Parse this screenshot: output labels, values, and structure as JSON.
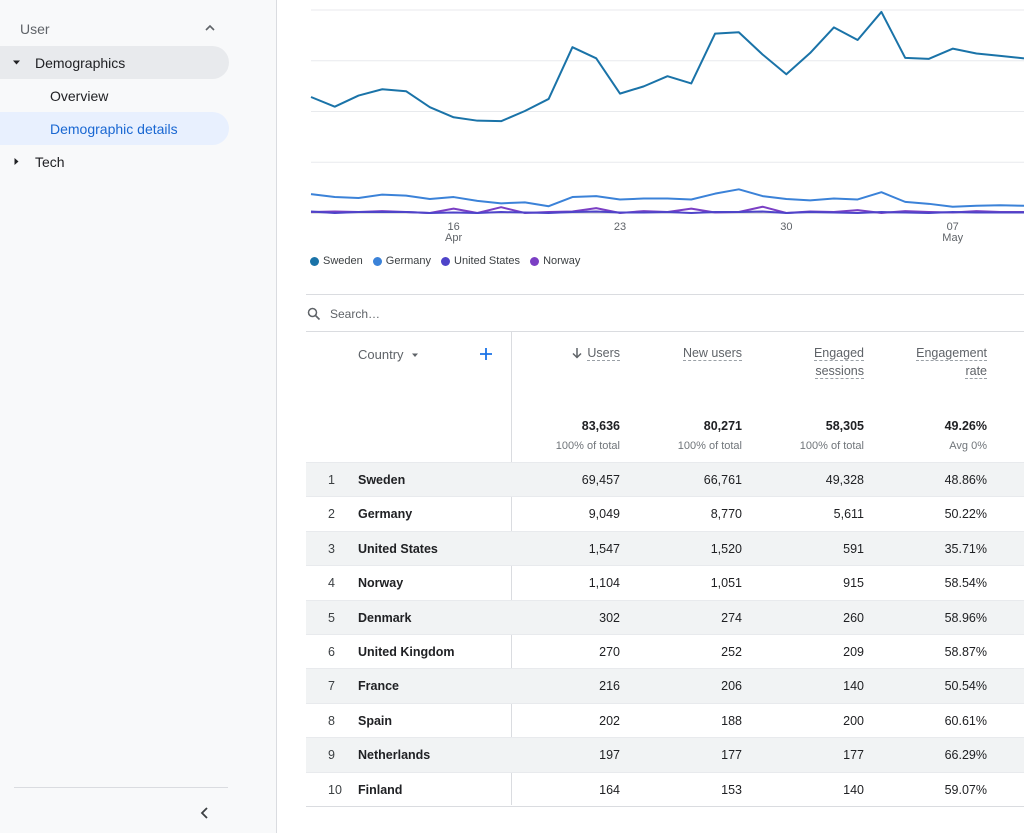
{
  "sidebar": {
    "section_label": "User",
    "items": [
      {
        "label": "Demographics"
      },
      {
        "label": "Overview"
      },
      {
        "label": "Demographic details"
      },
      {
        "label": "Tech"
      }
    ]
  },
  "chart": {
    "x_ticks": [
      {
        "day": "16",
        "month": "Apr"
      },
      {
        "day": "23",
        "month": ""
      },
      {
        "day": "30",
        "month": ""
      },
      {
        "day": "07",
        "month": "May"
      }
    ],
    "legend": [
      {
        "name": "Sweden",
        "color": "#1a73a8"
      },
      {
        "name": "Germany",
        "color": "#3b82d8"
      },
      {
        "name": "United States",
        "color": "#4e44c9"
      },
      {
        "name": "Norway",
        "color": "#7b3fc4"
      }
    ]
  },
  "chart_data": {
    "type": "line",
    "x": [
      "Apr 10",
      "Apr 11",
      "Apr 12",
      "Apr 13",
      "Apr 14",
      "Apr 15",
      "Apr 16",
      "Apr 17",
      "Apr 18",
      "Apr 19",
      "Apr 20",
      "Apr 21",
      "Apr 22",
      "Apr 23",
      "Apr 24",
      "Apr 25",
      "Apr 26",
      "Apr 27",
      "Apr 28",
      "Apr 29",
      "Apr 30",
      "May 1",
      "May 2",
      "May 3",
      "May 4",
      "May 5",
      "May 6",
      "May 7",
      "May 8",
      "May 9",
      "May 10"
    ],
    "series": [
      {
        "name": "Sweden",
        "values": [
          2400,
          2200,
          2430,
          2560,
          2520,
          2190,
          1980,
          1910,
          1900,
          2110,
          2360,
          3430,
          3200,
          2470,
          2620,
          2830,
          2680,
          3710,
          3740,
          3280,
          2870,
          3310,
          3840,
          3580,
          4160,
          3210,
          3190,
          3400,
          3300,
          3250,
          3200
        ]
      },
      {
        "name": "Germany",
        "values": [
          390,
          330,
          310,
          380,
          360,
          290,
          330,
          250,
          200,
          220,
          140,
          330,
          350,
          280,
          300,
          300,
          280,
          400,
          490,
          350,
          290,
          260,
          300,
          280,
          430,
          230,
          190,
          130,
          150,
          160,
          150
        ]
      },
      {
        "name": "United States",
        "values": [
          30,
          0,
          20,
          20,
          20,
          0,
          10,
          0,
          20,
          10,
          0,
          20,
          30,
          10,
          10,
          20,
          0,
          20,
          20,
          30,
          0,
          20,
          10,
          0,
          20,
          10,
          0,
          20,
          10,
          10,
          10
        ]
      },
      {
        "name": "Norway",
        "values": [
          20,
          30,
          20,
          40,
          20,
          0,
          90,
          0,
          120,
          0,
          20,
          30,
          100,
          0,
          40,
          20,
          90,
          10,
          20,
          130,
          0,
          30,
          20,
          60,
          0,
          40,
          20,
          10,
          40,
          20,
          20
        ]
      }
    ],
    "ylim": [
      0,
      4200
    ],
    "grid": true
  },
  "search": {
    "placeholder": "Search…"
  },
  "table": {
    "dimension_header": "Country",
    "columns": [
      {
        "label": "Users",
        "label_line2": "",
        "total": "83,636",
        "total_sub": "100% of total",
        "sorted": true
      },
      {
        "label": "New users",
        "label_line2": "",
        "total": "80,271",
        "total_sub": "100% of total",
        "sorted": false
      },
      {
        "label": "Engaged",
        "label_line2": "sessions",
        "total": "58,305",
        "total_sub": "100% of total",
        "sorted": false
      },
      {
        "label": "Engagement",
        "label_line2": "rate",
        "total": "49.26%",
        "total_sub": "Avg 0%",
        "sorted": false
      }
    ],
    "rows": [
      {
        "idx": "1",
        "country": "Sweden",
        "users": "69,457",
        "new_users": "66,761",
        "engaged": "49,328",
        "rate": "48.86%"
      },
      {
        "idx": "2",
        "country": "Germany",
        "users": "9,049",
        "new_users": "8,770",
        "engaged": "5,611",
        "rate": "50.22%"
      },
      {
        "idx": "3",
        "country": "United States",
        "users": "1,547",
        "new_users": "1,520",
        "engaged": "591",
        "rate": "35.71%"
      },
      {
        "idx": "4",
        "country": "Norway",
        "users": "1,104",
        "new_users": "1,051",
        "engaged": "915",
        "rate": "58.54%"
      },
      {
        "idx": "5",
        "country": "Denmark",
        "users": "302",
        "new_users": "274",
        "engaged": "260",
        "rate": "58.96%"
      },
      {
        "idx": "6",
        "country": "United Kingdom",
        "users": "270",
        "new_users": "252",
        "engaged": "209",
        "rate": "58.87%"
      },
      {
        "idx": "7",
        "country": "France",
        "users": "216",
        "new_users": "206",
        "engaged": "140",
        "rate": "50.54%"
      },
      {
        "idx": "8",
        "country": "Spain",
        "users": "202",
        "new_users": "188",
        "engaged": "200",
        "rate": "60.61%"
      },
      {
        "idx": "9",
        "country": "Netherlands",
        "users": "197",
        "new_users": "177",
        "engaged": "177",
        "rate": "66.29%"
      },
      {
        "idx": "10",
        "country": "Finland",
        "users": "164",
        "new_users": "153",
        "engaged": "140",
        "rate": "59.07%"
      }
    ]
  }
}
